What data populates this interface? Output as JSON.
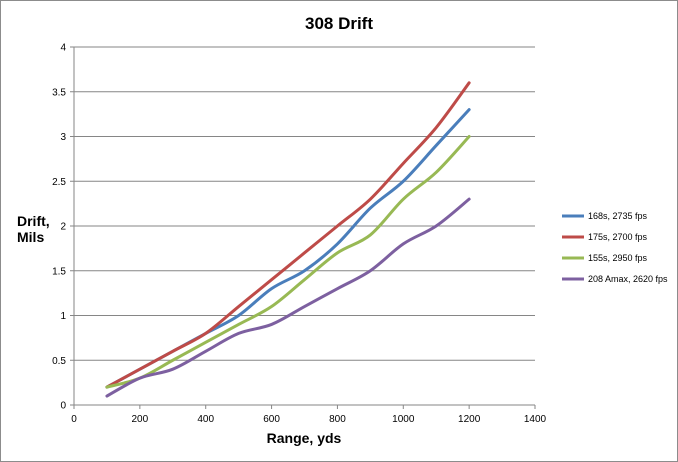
{
  "chart_data": {
    "type": "line",
    "title": "308 Drift",
    "xlabel": "Range, yds",
    "ylabel": [
      "Drift,",
      "Mils"
    ],
    "xlim": [
      0,
      1400
    ],
    "ylim": [
      0,
      4
    ],
    "xticks": [
      0,
      200,
      400,
      600,
      800,
      1000,
      1200,
      1400
    ],
    "yticks": [
      0,
      0.5,
      1,
      1.5,
      2,
      2.5,
      3,
      3.5,
      4
    ],
    "grid": "horizontal",
    "legend_position": "right",
    "x": [
      100,
      200,
      300,
      400,
      500,
      600,
      700,
      800,
      900,
      1000,
      1100,
      1200
    ],
    "series": [
      {
        "name": "168s, 2735 fps",
        "color": "#4a7ebb",
        "values": [
          0.2,
          0.4,
          0.6,
          0.8,
          1.0,
          1.3,
          1.5,
          1.8,
          2.2,
          2.5,
          2.9,
          3.3
        ]
      },
      {
        "name": "175s, 2700 fps",
        "color": "#be4b48",
        "values": [
          0.2,
          0.4,
          0.6,
          0.8,
          1.1,
          1.4,
          1.7,
          2.0,
          2.3,
          2.7,
          3.1,
          3.6
        ]
      },
      {
        "name": "155s, 2950 fps",
        "color": "#98b954",
        "values": [
          0.2,
          0.3,
          0.5,
          0.7,
          0.9,
          1.1,
          1.4,
          1.7,
          1.9,
          2.3,
          2.6,
          3.0
        ]
      },
      {
        "name": "208 Amax, 2620 fps",
        "color": "#7d60a0",
        "values": [
          0.1,
          0.3,
          0.4,
          0.6,
          0.8,
          0.9,
          1.1,
          1.3,
          1.5,
          1.8,
          2.0,
          2.3
        ]
      }
    ]
  }
}
